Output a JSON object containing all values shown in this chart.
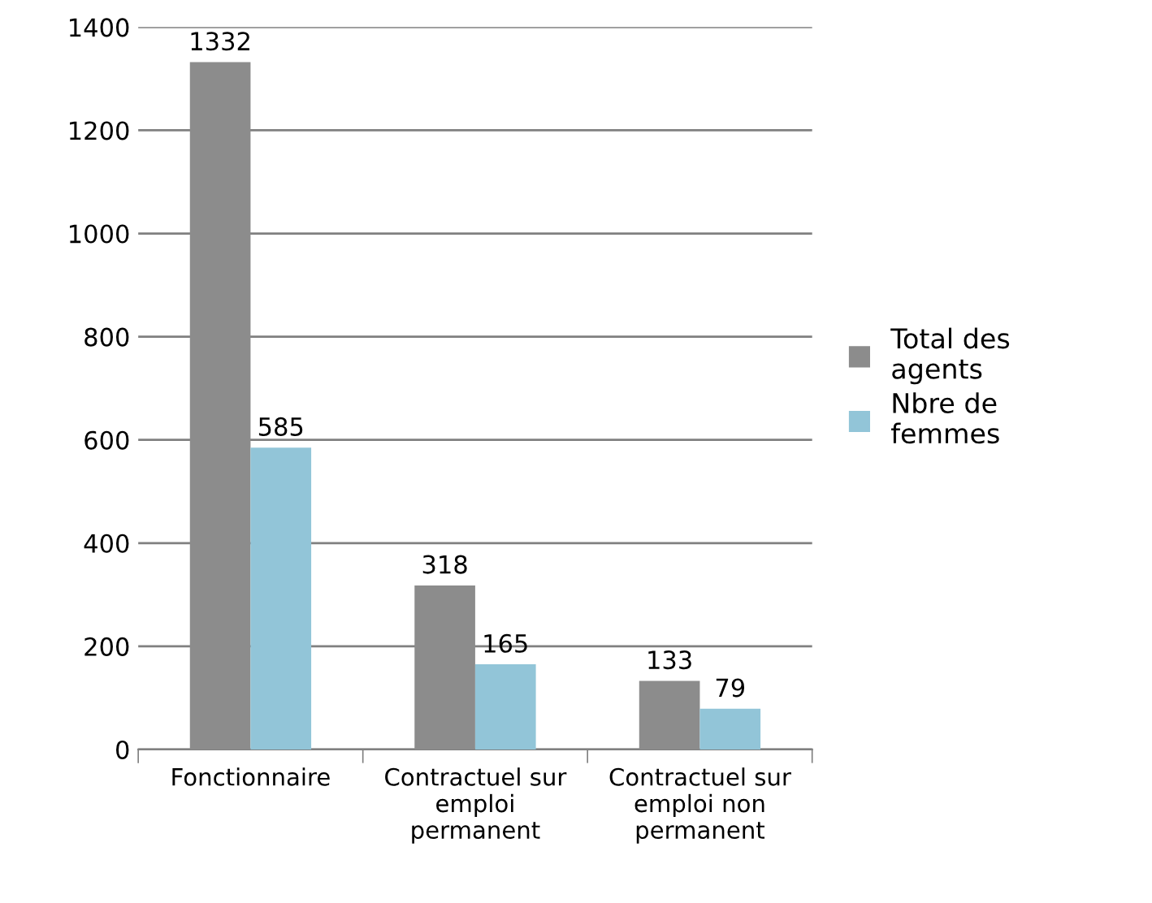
{
  "chart_data": {
    "type": "bar",
    "categories": [
      "Fonctionnaire",
      "Contractuel sur\nemploi\npermanent",
      "Contractuel sur\nemploi non\npermanent"
    ],
    "series": [
      {
        "name": "Total des\nagents",
        "color": "#8c8c8c",
        "values": [
          1332,
          318,
          133
        ]
      },
      {
        "name": "Nbre de\nfemmes",
        "color": "#92c5d8",
        "values": [
          585,
          165,
          79
        ]
      }
    ],
    "ylim": [
      0,
      1400
    ],
    "yticks": [
      0,
      200,
      400,
      600,
      800,
      1000,
      1200,
      1400
    ],
    "grid": "y",
    "legend": "right",
    "data_labels": true
  }
}
